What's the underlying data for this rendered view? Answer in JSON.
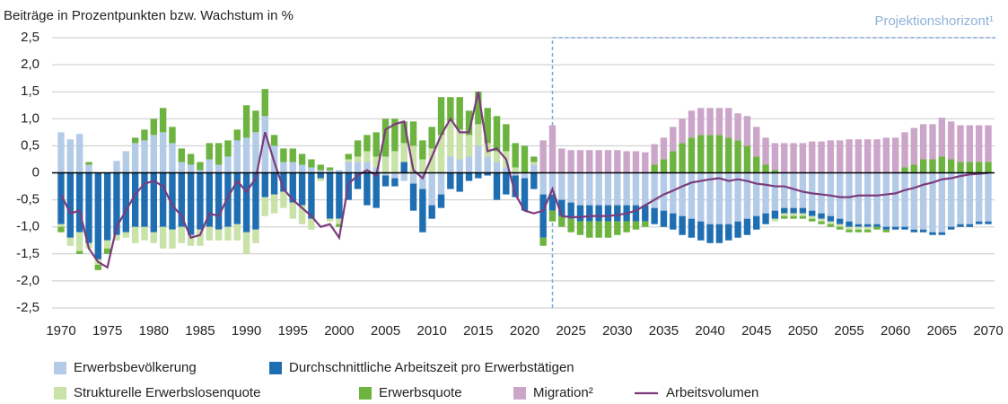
{
  "chart_data": {
    "type": "bar",
    "y_label": "Beiträge in Prozentpunkten bzw. Wachstum in %",
    "annotation": {
      "text": "Projektionshorizont¹",
      "x": 2023
    },
    "x": [
      1970,
      1971,
      1972,
      1973,
      1974,
      1975,
      1976,
      1977,
      1978,
      1979,
      1980,
      1981,
      1982,
      1983,
      1984,
      1985,
      1986,
      1987,
      1988,
      1989,
      1990,
      1991,
      1992,
      1993,
      1994,
      1995,
      1996,
      1997,
      1998,
      1999,
      2000,
      2001,
      2002,
      2003,
      2004,
      2005,
      2006,
      2007,
      2008,
      2009,
      2010,
      2011,
      2012,
      2013,
      2014,
      2015,
      2016,
      2017,
      2018,
      2019,
      2020,
      2021,
      2022,
      2023,
      2024,
      2025,
      2026,
      2027,
      2028,
      2029,
      2030,
      2031,
      2032,
      2033,
      2034,
      2035,
      2036,
      2037,
      2038,
      2039,
      2040,
      2041,
      2042,
      2043,
      2044,
      2045,
      2046,
      2047,
      2048,
      2049,
      2050,
      2051,
      2052,
      2053,
      2054,
      2055,
      2056,
      2057,
      2058,
      2059,
      2060,
      2061,
      2062,
      2063,
      2064,
      2065,
      2066,
      2067,
      2068,
      2069,
      2070
    ],
    "xlim": [
      1970,
      2070
    ],
    "xticks": [
      1970,
      1975,
      1980,
      1985,
      1990,
      1995,
      2000,
      2005,
      2010,
      2015,
      2020,
      2025,
      2030,
      2035,
      2040,
      2045,
      2050,
      2055,
      2060,
      2065,
      2070
    ],
    "ylim": [
      -2.5,
      2.5
    ],
    "yticks": [
      {
        "value": -2.5,
        "label": "-2,5"
      },
      {
        "value": -2,
        "label": "-2,0"
      },
      {
        "value": -1.5,
        "label": "-1,5"
      },
      {
        "value": -1,
        "label": "-1,0"
      },
      {
        "value": -0.5,
        "label": "-0,5"
      },
      0,
      {
        "value": 0.5,
        "label": "0,5"
      },
      {
        "value": 1,
        "label": "1,0"
      },
      {
        "value": 1.5,
        "label": "1,5"
      },
      {
        "value": 2,
        "label": "2,0"
      },
      {
        "value": 2.5,
        "label": "2,5"
      }
    ],
    "grid": true,
    "series": [
      {
        "name": "Erwerbsbevölkerung",
        "color": "#b4cbe8",
        "values": [
          0.75,
          0.62,
          0.72,
          0.15,
          0,
          0,
          0.22,
          0.4,
          0.55,
          0.6,
          0.7,
          0.75,
          0.55,
          0.2,
          0.15,
          0.05,
          0.25,
          0.15,
          0.3,
          0.6,
          0.65,
          0.75,
          1.05,
          0.5,
          0.2,
          0.2,
          0.15,
          0.1,
          0.05,
          0.05,
          0.05,
          0.2,
          0.2,
          0.2,
          0.1,
          -0.05,
          -0.1,
          -0.15,
          -0.2,
          -0.3,
          -0.6,
          -0.4,
          0.3,
          0.25,
          0.3,
          0.5,
          0.3,
          0.2,
          0.1,
          -0.05,
          -0.1,
          0.15,
          -0.4,
          -0.4,
          -0.5,
          -0.55,
          -0.6,
          -0.6,
          -0.6,
          -0.6,
          -0.6,
          -0.6,
          -0.6,
          -0.6,
          -0.65,
          -0.7,
          -0.75,
          -0.8,
          -0.85,
          -0.9,
          -0.95,
          -0.95,
          -0.95,
          -0.9,
          -0.85,
          -0.8,
          -0.75,
          -0.7,
          -0.65,
          -0.65,
          -0.65,
          -0.7,
          -0.75,
          -0.8,
          -0.85,
          -0.9,
          -0.95,
          -0.95,
          -0.95,
          -1.0,
          -1.0,
          -1.0,
          -1.05,
          -1.05,
          -1.1,
          -1.1,
          -1.0,
          -0.95,
          -0.95,
          -0.9,
          -0.9
        ]
      },
      {
        "name": "Durchschnittliche Arbeitszeit pro Erwerbstätigen",
        "color": "#1f6eb2",
        "values": [
          -0.95,
          -1.2,
          -1.1,
          -1.3,
          -1.6,
          -1.25,
          -1.15,
          -1.1,
          -1.0,
          -1.0,
          -1.1,
          -1.0,
          -1.05,
          -1.0,
          -1.15,
          -1.05,
          -1.0,
          -1.05,
          -1.0,
          -0.95,
          -1.1,
          -1.05,
          -0.45,
          -0.4,
          -0.35,
          -0.55,
          -0.6,
          -0.85,
          -0.1,
          -0.85,
          -0.85,
          -0.5,
          -0.3,
          -0.6,
          -0.65,
          -0.2,
          -0.15,
          0.2,
          -0.5,
          -0.8,
          -0.25,
          -0.25,
          -0.3,
          -0.35,
          -0.15,
          -0.1,
          -0.05,
          -0.5,
          -0.4,
          -0.4,
          -0.6,
          -0.3,
          -0.8,
          -0.3,
          -0.3,
          -0.3,
          -0.3,
          -0.3,
          -0.3,
          -0.3,
          -0.3,
          -0.3,
          -0.3,
          -0.3,
          -0.3,
          -0.3,
          -0.3,
          -0.35,
          -0.35,
          -0.35,
          -0.35,
          -0.35,
          -0.3,
          -0.3,
          -0.3,
          -0.25,
          -0.2,
          -0.15,
          -0.1,
          -0.1,
          -0.1,
          -0.1,
          -0.1,
          -0.1,
          -0.1,
          -0.1,
          -0.05,
          -0.05,
          -0.05,
          -0.05,
          -0.05,
          -0.05,
          -0.05,
          -0.05,
          -0.05,
          -0.05,
          -0.05,
          -0.05,
          -0.05,
          -0.05,
          -0.05
        ]
      },
      {
        "name": "Strukturelle Erwerbslosenquote",
        "color": "#c8e2a8",
        "values": [
          -0.05,
          -0.15,
          -0.35,
          -0.1,
          -0.1,
          -0.15,
          -0.1,
          -0.1,
          -0.3,
          -0.25,
          -0.2,
          -0.4,
          -0.35,
          -0.3,
          -0.2,
          -0.3,
          -0.25,
          -0.2,
          -0.25,
          -0.3,
          -0.4,
          -0.25,
          -0.35,
          -0.35,
          -0.3,
          -0.3,
          -0.35,
          -0.2,
          -0.05,
          -0.05,
          -0.1,
          0.05,
          0.1,
          0.2,
          0.2,
          0.3,
          0.4,
          0.35,
          0.5,
          0.25,
          0.45,
          0.7,
          0.65,
          0.55,
          0.4,
          0.4,
          0.25,
          0.2,
          0.3,
          0.1,
          0,
          0.05,
          0,
          0,
          0,
          0,
          0,
          0,
          0,
          0,
          0,
          0,
          0,
          0,
          0,
          0,
          0,
          0,
          0,
          0,
          0,
          0,
          0,
          0,
          0,
          0,
          0,
          -0.05,
          -0.05,
          -0.05,
          -0.05,
          -0.05,
          -0.05,
          -0.05,
          -0.05,
          -0.05,
          -0.05,
          -0.05,
          0,
          0,
          0,
          0,
          0,
          0,
          0,
          0,
          0,
          0,
          0,
          0,
          0
        ]
      },
      {
        "name": "Erwerbsquote",
        "color": "#6cb33f",
        "values": [
          -0.1,
          0,
          -0.05,
          0.05,
          -0.1,
          -0.1,
          0,
          0,
          0.1,
          0.2,
          0.3,
          0.45,
          0.3,
          0.25,
          0.2,
          0.15,
          0.3,
          0.4,
          0.3,
          0.2,
          0.6,
          0.4,
          0.5,
          0.2,
          0.25,
          0.25,
          0.2,
          0.15,
          0.1,
          0.05,
          -0.05,
          0.1,
          0.3,
          0.3,
          0.45,
          0.7,
          0.6,
          0.4,
          0.45,
          0.35,
          0.4,
          0.7,
          0.45,
          0.6,
          0.45,
          0.6,
          0.65,
          0.65,
          0.5,
          0.45,
          0.5,
          0.1,
          -0.15,
          -0.2,
          -0.2,
          -0.25,
          -0.25,
          -0.3,
          -0.3,
          -0.3,
          -0.25,
          -0.2,
          -0.15,
          -0.1,
          0.15,
          0.25,
          0.4,
          0.55,
          0.65,
          0.7,
          0.7,
          0.7,
          0.65,
          0.6,
          0.5,
          0.3,
          0.15,
          0.05,
          -0.05,
          -0.05,
          -0.05,
          -0.05,
          -0.05,
          -0.05,
          -0.05,
          -0.05,
          -0.05,
          -0.05,
          -0.05,
          -0.05,
          0,
          0.1,
          0.15,
          0.25,
          0.25,
          0.3,
          0.25,
          0.2,
          0.2,
          0.2,
          0.2
        ]
      },
      {
        "name": "Migration²",
        "color": "#cba6c8",
        "values": [
          0,
          0,
          0,
          0,
          0,
          0,
          0,
          0,
          0,
          0,
          0,
          0,
          0,
          0,
          0,
          0,
          0,
          0,
          0,
          0,
          0,
          0,
          0,
          0,
          0,
          0,
          0,
          0,
          0,
          0,
          0,
          0,
          0,
          0,
          0,
          0,
          0,
          0,
          0,
          0,
          0,
          0,
          0,
          0,
          0,
          0,
          0,
          0,
          0,
          0,
          0,
          0,
          0.6,
          0.88,
          0.45,
          0.42,
          0.42,
          0.42,
          0.42,
          0.42,
          0.42,
          0.4,
          0.4,
          0.38,
          0.38,
          0.4,
          0.45,
          0.45,
          0.5,
          0.5,
          0.5,
          0.5,
          0.55,
          0.5,
          0.55,
          0.55,
          0.5,
          0.5,
          0.55,
          0.55,
          0.55,
          0.58,
          0.58,
          0.6,
          0.6,
          0.62,
          0.62,
          0.62,
          0.62,
          0.65,
          0.65,
          0.65,
          0.68,
          0.65,
          0.65,
          0.72,
          0.7,
          0.68,
          0.68,
          0.68,
          0.68
        ]
      },
      {
        "name": "Arbeitsvolumen",
        "color": "#7b3c7d",
        "type": "line",
        "values": [
          -0.4,
          -0.75,
          -0.7,
          -1.4,
          -1.65,
          -1.75,
          -1.0,
          -0.7,
          -0.4,
          -0.2,
          -0.15,
          -0.25,
          -0.6,
          -0.8,
          -1.2,
          -1.15,
          -0.75,
          -0.8,
          -0.45,
          -0.15,
          -0.35,
          -0.1,
          0.75,
          0.2,
          -0.3,
          -0.5,
          -0.65,
          -0.8,
          -1.0,
          -0.95,
          -1.2,
          -0.2,
          -0.05,
          0.05,
          -0.05,
          0.8,
          0.9,
          0.95,
          0.05,
          -0.1,
          0.3,
          0.7,
          1.0,
          0.75,
          0.75,
          1.5,
          0.4,
          0.45,
          0.25,
          -0.4,
          -0.7,
          -0.75,
          -0.7,
          -0.3,
          -0.8,
          -0.82,
          -0.82,
          -0.8,
          -0.8,
          -0.8,
          -0.78,
          -0.75,
          -0.7,
          -0.6,
          -0.5,
          -0.4,
          -0.33,
          -0.25,
          -0.18,
          -0.15,
          -0.12,
          -0.1,
          -0.15,
          -0.12,
          -0.15,
          -0.2,
          -0.22,
          -0.25,
          -0.25,
          -0.3,
          -0.35,
          -0.38,
          -0.4,
          -0.42,
          -0.45,
          -0.45,
          -0.42,
          -0.42,
          -0.42,
          -0.4,
          -0.38,
          -0.32,
          -0.28,
          -0.22,
          -0.18,
          -0.12,
          -0.1,
          -0.06,
          -0.03,
          -0.02,
          0
        ]
      }
    ]
  }
}
